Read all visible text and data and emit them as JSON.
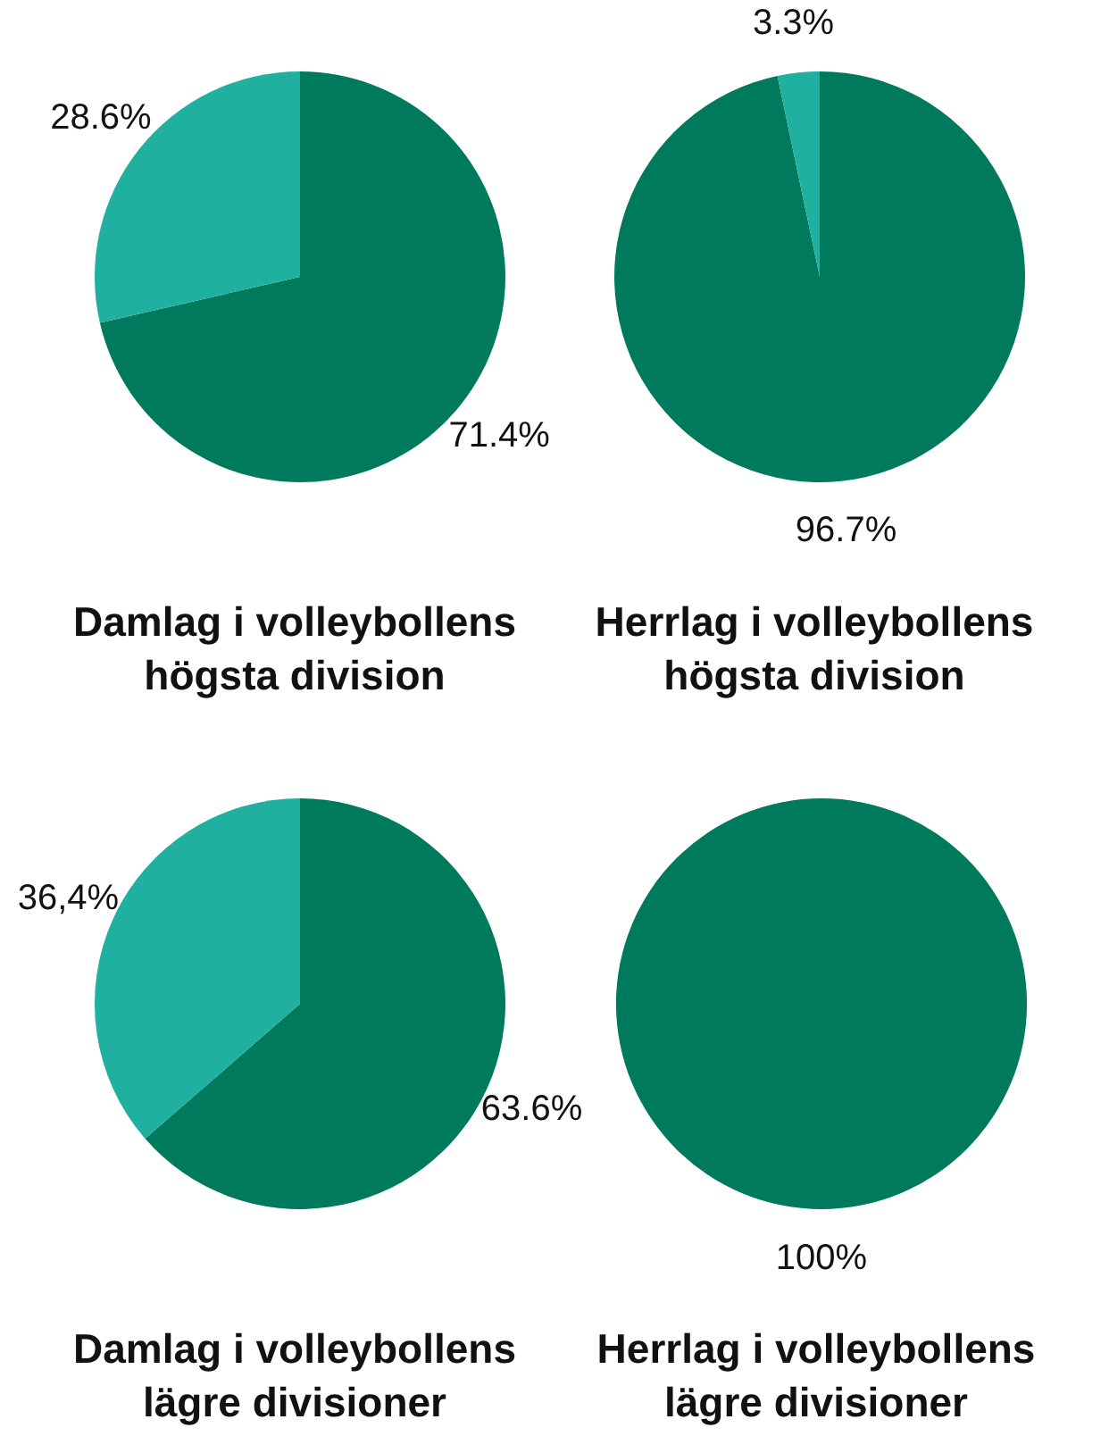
{
  "chart_data": [
    {
      "type": "pie",
      "title": "Damlag i volleybollens högsta division",
      "categories": [
        null,
        null
      ],
      "values": [
        71.4,
        28.6
      ],
      "colors": [
        "#007a5c",
        "#20b0a0"
      ],
      "value_labels": [
        "71.4%",
        "28.6%"
      ]
    },
    {
      "type": "pie",
      "title": "Herrlag i volleybollens högsta division",
      "categories": [
        null,
        null
      ],
      "values": [
        96.7,
        3.3
      ],
      "colors": [
        "#007a5c",
        "#20b0a0"
      ],
      "value_labels": [
        "96.7%",
        "3.3%"
      ]
    },
    {
      "type": "pie",
      "title": "Damlag i volleybollens lägre divisioner",
      "categories": [
        null,
        null
      ],
      "values": [
        63.6,
        36.4
      ],
      "colors": [
        "#007a5c",
        "#20b0a0"
      ],
      "value_labels": [
        "63.6%",
        "36,4%"
      ]
    },
    {
      "type": "pie",
      "title": "Herrlag i volleybollens lägre divisioner",
      "categories": [
        null
      ],
      "values": [
        100
      ],
      "colors": [
        "#007a5c"
      ],
      "value_labels": [
        "100%"
      ]
    }
  ]
}
